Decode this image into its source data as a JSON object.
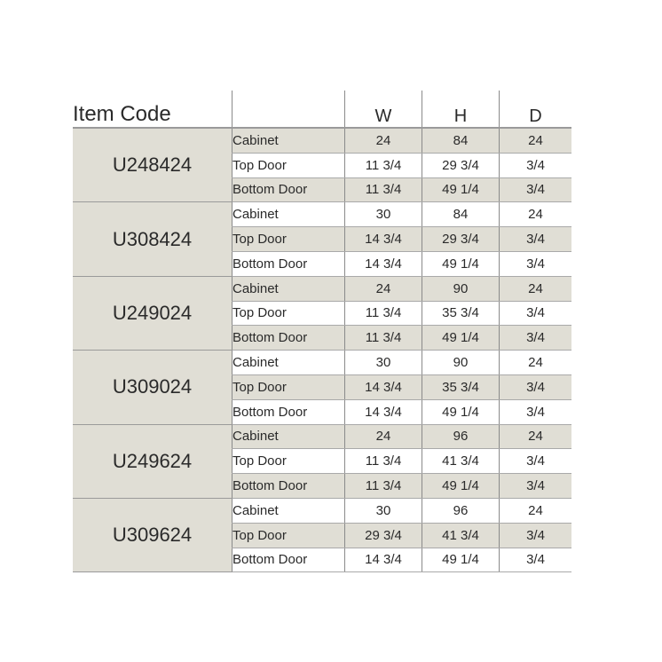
{
  "header": {
    "item_code": "Item Code",
    "label": "",
    "w": "W",
    "h": "H",
    "d": "D"
  },
  "colors": {
    "shade": "#e0ded5",
    "line": "#8a8a8a"
  },
  "items": [
    {
      "code": "U248424",
      "rows": [
        {
          "part": "Cabinet",
          "w": "24",
          "h": "84",
          "d": "24"
        },
        {
          "part": "Top Door",
          "w": "11 3/4",
          "h": "29 3/4",
          "d": "3/4"
        },
        {
          "part": "Bottom Door",
          "w": "11 3/4",
          "h": "49 1/4",
          "d": "3/4"
        }
      ]
    },
    {
      "code": "U308424",
      "rows": [
        {
          "part": "Cabinet",
          "w": "30",
          "h": "84",
          "d": "24"
        },
        {
          "part": "Top Door",
          "w": "14 3/4",
          "h": "29 3/4",
          "d": "3/4"
        },
        {
          "part": "Bottom Door",
          "w": "14 3/4",
          "h": "49 1/4",
          "d": "3/4"
        }
      ]
    },
    {
      "code": "U249024",
      "rows": [
        {
          "part": "Cabinet",
          "w": "24",
          "h": "90",
          "d": "24"
        },
        {
          "part": "Top Door",
          "w": "11 3/4",
          "h": "35 3/4",
          "d": "3/4"
        },
        {
          "part": "Bottom Door",
          "w": "11 3/4",
          "h": "49 1/4",
          "d": "3/4"
        }
      ]
    },
    {
      "code": "U309024",
      "rows": [
        {
          "part": "Cabinet",
          "w": "30",
          "h": "90",
          "d": "24"
        },
        {
          "part": "Top Door",
          "w": "14 3/4",
          "h": "35 3/4",
          "d": "3/4"
        },
        {
          "part": "Bottom Door",
          "w": "14 3/4",
          "h": "49 1/4",
          "d": "3/4"
        }
      ]
    },
    {
      "code": "U249624",
      "rows": [
        {
          "part": "Cabinet",
          "w": "24",
          "h": "96",
          "d": "24"
        },
        {
          "part": "Top Door",
          "w": "11 3/4",
          "h": "41 3/4",
          "d": "3/4"
        },
        {
          "part": "Bottom Door",
          "w": "11 3/4",
          "h": "49 1/4",
          "d": "3/4"
        }
      ]
    },
    {
      "code": "U309624",
      "rows": [
        {
          "part": "Cabinet",
          "w": "30",
          "h": "96",
          "d": "24"
        },
        {
          "part": "Top Door",
          "w": "29 3/4",
          "h": "41 3/4",
          "d": "3/4"
        },
        {
          "part": "Bottom Door",
          "w": "14 3/4",
          "h": "49 1/4",
          "d": "3/4"
        }
      ]
    }
  ]
}
